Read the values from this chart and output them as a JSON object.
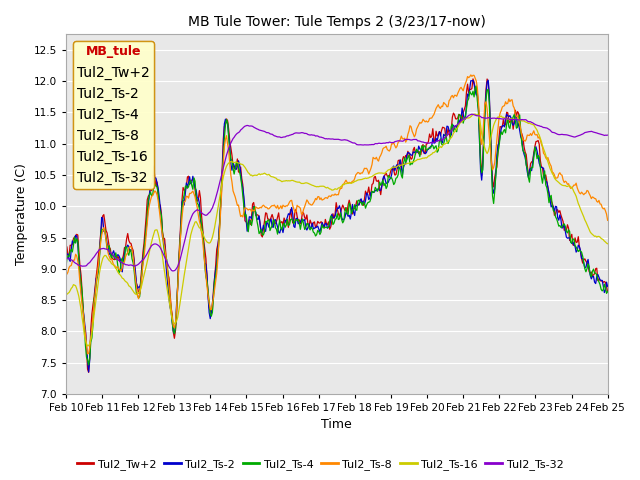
{
  "title": "MB Tule Tower: Tule Temps 2 (3/23/17-now)",
  "xlabel": "Time",
  "ylabel": "Temperature (C)",
  "ylim": [
    7.0,
    12.75
  ],
  "yticks": [
    7.0,
    7.5,
    8.0,
    8.5,
    9.0,
    9.5,
    10.0,
    10.5,
    11.0,
    11.5,
    12.0,
    12.5
  ],
  "xtick_labels": [
    "Feb 10",
    "Feb 11",
    "Feb 12",
    "Feb 13",
    "Feb 14",
    "Feb 15",
    "Feb 16",
    "Feb 17",
    "Feb 18",
    "Feb 19",
    "Feb 20",
    "Feb 21",
    "Feb 22",
    "Feb 23",
    "Feb 24",
    "Feb 25"
  ],
  "background_color": "#ffffff",
  "plot_bg_color": "#e8e8e8",
  "grid_color": "#ffffff",
  "series": [
    {
      "name": "Tul2_Tw+2",
      "color": "#cc0000"
    },
    {
      "name": "Tul2_Ts-2",
      "color": "#0000cc"
    },
    {
      "name": "Tul2_Ts-4",
      "color": "#00aa00"
    },
    {
      "name": "Tul2_Ts-8",
      "color": "#ff8800"
    },
    {
      "name": "Tul2_Ts-16",
      "color": "#cccc00"
    },
    {
      "name": "Tul2_Ts-32",
      "color": "#8800cc"
    }
  ],
  "legend_text": "MB_tule",
  "legend_text_color": "#cc0000",
  "legend_border_color": "#cc8800",
  "figsize": [
    6.4,
    4.8
  ],
  "dpi": 100
}
